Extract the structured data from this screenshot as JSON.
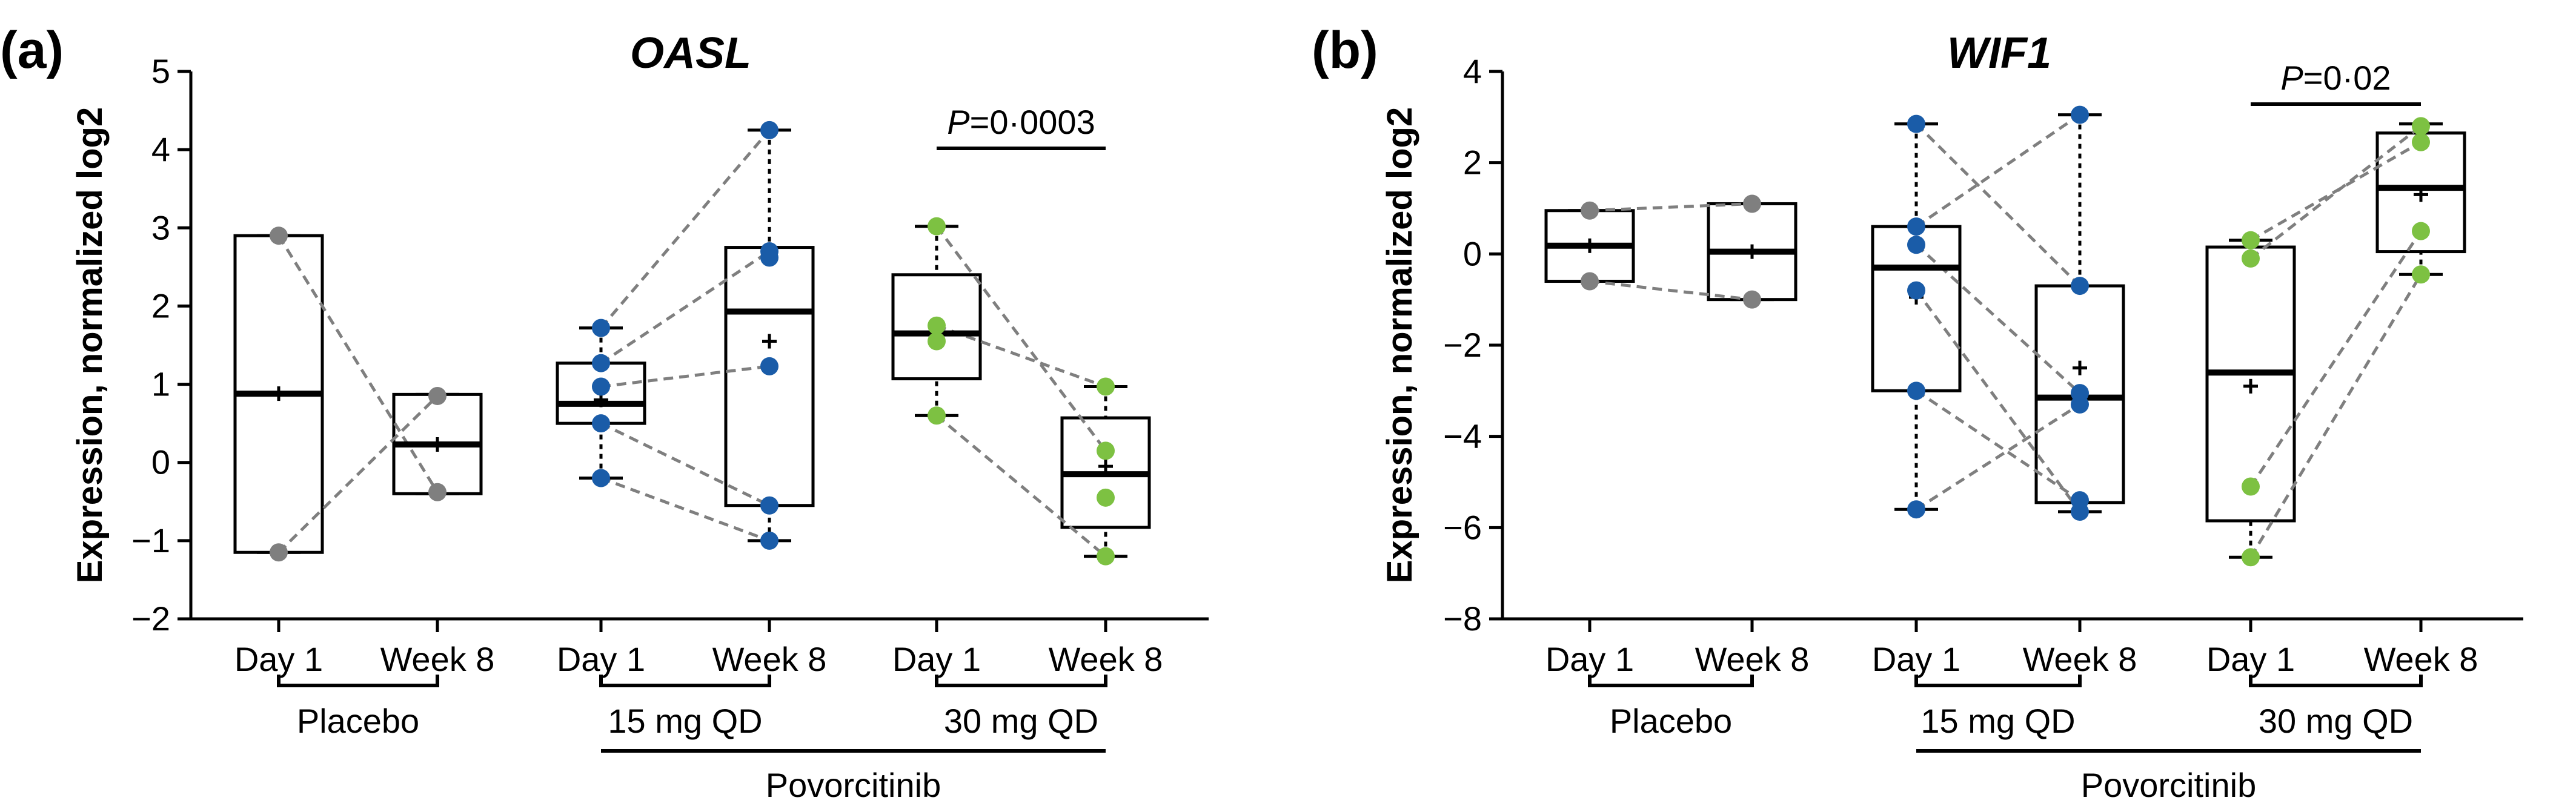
{
  "chart_data": [
    {
      "type": "box",
      "panel": "(a)",
      "title": "OASL",
      "ylabel": "Expression, normalized log2",
      "ylim": [
        -2,
        5
      ],
      "yticks": [
        "5",
        "4",
        "3",
        "2",
        "1",
        "0",
        "−1",
        "−2"
      ],
      "categories": [
        "Day 1",
        "Week 8",
        "Day 1",
        "Week 8",
        "Day 1",
        "Week 8"
      ],
      "group_labels": [
        "Placebo",
        "15 mg QD",
        "30 mg QD"
      ],
      "super_group_label": "Povorcitinib",
      "significance": {
        "p_prefix": "P",
        "p_value": "=0·0003"
      },
      "boxes": [
        {
          "min": -1.15,
          "q1": -1.15,
          "median": 0.88,
          "mean": 0.88,
          "q3": 2.9,
          "max": 2.9,
          "color": "#7f7f7f",
          "points": [
            2.9,
            -1.15
          ]
        },
        {
          "min": -0.4,
          "q1": -0.4,
          "median": 0.23,
          "mean": 0.23,
          "q3": 0.87,
          "max": 0.87,
          "color": "#7f7f7f",
          "points": [
            0.85,
            -0.38
          ]
        },
        {
          "min": -0.2,
          "q1": 0.5,
          "median": 0.75,
          "mean": 0.8,
          "q3": 1.27,
          "max": 1.72,
          "color": "#1a5ca8",
          "points": [
            1.72,
            1.27,
            0.97,
            0.5,
            -0.2
          ]
        },
        {
          "min": -1.0,
          "q1": -0.55,
          "median": 1.93,
          "mean": 1.55,
          "q3": 2.75,
          "max": 4.25,
          "color": "#1a5ca8",
          "points": [
            4.25,
            2.7,
            2.62,
            1.23,
            -0.55,
            -1.0
          ]
        },
        {
          "min": 0.6,
          "q1": 1.07,
          "median": 1.65,
          "mean": 1.72,
          "q3": 2.4,
          "max": 3.02,
          "color": "#7dc142",
          "points": [
            3.02,
            1.75,
            1.55,
            0.6
          ]
        },
        {
          "min": -1.2,
          "q1": -0.83,
          "median": -0.15,
          "mean": -0.05,
          "q3": 0.57,
          "max": 0.97,
          "color": "#7dc142",
          "points": [
            0.97,
            0.15,
            -0.45,
            -1.2
          ]
        }
      ],
      "pairs": [
        [
          0,
          0,
          1,
          1
        ],
        [
          0,
          1,
          1,
          0
        ],
        [
          2,
          0,
          3,
          0
        ],
        [
          2,
          1,
          3,
          1
        ],
        [
          2,
          2,
          3,
          3
        ],
        [
          2,
          3,
          3,
          4
        ],
        [
          2,
          4,
          3,
          5
        ],
        [
          4,
          0,
          5,
          1
        ],
        [
          4,
          1,
          5,
          0
        ],
        [
          4,
          3,
          5,
          3
        ]
      ]
    },
    {
      "type": "box",
      "panel": "(b)",
      "title": "WIF1",
      "ylabel": "Expression, normalized log2",
      "ylim": [
        -8,
        4
      ],
      "yticks": [
        "4",
        "2",
        "0",
        "−2",
        "−4",
        "−6",
        "−8"
      ],
      "categories": [
        "Day 1",
        "Week 8",
        "Day 1",
        "Week 8",
        "Day 1",
        "Week 8"
      ],
      "group_labels": [
        "Placebo",
        "15 mg QD",
        "30 mg QD"
      ],
      "super_group_label": "Povorcitinib",
      "significance": {
        "p_prefix": "P",
        "p_value": "=0·02"
      },
      "boxes": [
        {
          "min": -0.6,
          "q1": -0.6,
          "median": 0.18,
          "mean": 0.18,
          "q3": 0.95,
          "max": 0.95,
          "color": "#7f7f7f",
          "points": [
            0.95,
            -0.6
          ]
        },
        {
          "min": -1.0,
          "q1": -1.0,
          "median": 0.05,
          "mean": 0.05,
          "q3": 1.1,
          "max": 1.1,
          "color": "#7f7f7f",
          "points": [
            1.1,
            -1.0
          ]
        },
        {
          "min": -5.6,
          "q1": -3.0,
          "median": -0.3,
          "mean": -0.95,
          "q3": 0.6,
          "max": 2.85,
          "color": "#1a5ca8",
          "points": [
            2.85,
            0.6,
            0.2,
            -0.8,
            -3.0,
            -5.6
          ]
        },
        {
          "min": -5.65,
          "q1": -5.45,
          "median": -3.15,
          "mean": -2.5,
          "q3": -0.7,
          "max": 3.05,
          "color": "#1a5ca8",
          "points": [
            3.05,
            -0.7,
            -3.05,
            -3.3,
            -5.4,
            -5.65
          ]
        },
        {
          "min": -6.65,
          "q1": -5.85,
          "median": -2.6,
          "mean": -2.9,
          "q3": 0.15,
          "max": 0.3,
          "color": "#7dc142",
          "points": [
            0.3,
            -0.1,
            -5.1,
            -6.65
          ]
        },
        {
          "min": -0.45,
          "q1": 0.05,
          "median": 1.45,
          "mean": 1.3,
          "q3": 2.65,
          "max": 2.85,
          "color": "#7dc142",
          "points": [
            2.8,
            2.45,
            0.5,
            -0.45
          ]
        }
      ],
      "pairs": [
        [
          0,
          0,
          1,
          0
        ],
        [
          0,
          1,
          1,
          1
        ],
        [
          2,
          0,
          3,
          1
        ],
        [
          2,
          1,
          3,
          0
        ],
        [
          2,
          2,
          3,
          2
        ],
        [
          2,
          3,
          3,
          5
        ],
        [
          2,
          4,
          3,
          4
        ],
        [
          2,
          5,
          3,
          3
        ],
        [
          4,
          0,
          5,
          1
        ],
        [
          4,
          1,
          5,
          0
        ],
        [
          4,
          2,
          5,
          2
        ],
        [
          4,
          3,
          5,
          3
        ]
      ]
    }
  ]
}
